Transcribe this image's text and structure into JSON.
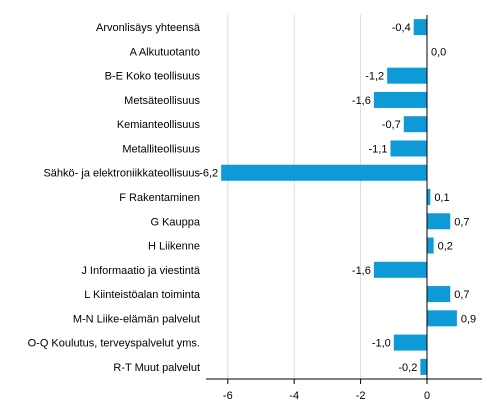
{
  "chart_data": {
    "type": "bar",
    "orientation": "horizontal",
    "categories": [
      "Arvonlisäys yhteensä",
      "A Alkutuotanto",
      "B-E Koko teollisuus",
      "Metsäteollisuus",
      "Kemianteollisuus",
      "Metalliteollisuus",
      "Sähkö- ja elektroniikkateollisuus",
      "F Rakentaminen",
      "G Kauppa",
      "H Liikenne",
      "J Informaatio ja viestintä",
      "L Kiinteistöalan toiminta",
      "M-N Liike-elämän palvelut",
      "O-Q Koulutus, terveyspalvelut yms.",
      "R-T Muut palvelut"
    ],
    "values": [
      -0.4,
      0.0,
      -1.2,
      -1.6,
      -0.7,
      -1.1,
      -6.2,
      0.1,
      0.7,
      0.2,
      -1.6,
      0.7,
      0.9,
      -1.0,
      -0.2
    ],
    "value_labels": [
      "-0,4",
      "0,0",
      "-1,2",
      "-1,6",
      "-0,7",
      "-1,1",
      "-6,2",
      "0,1",
      "0,7",
      "0,2",
      "-1,6",
      "0,7",
      "0,9",
      "-1,0",
      "-0,2"
    ],
    "xticks": [
      -6,
      -4,
      -2,
      0
    ],
    "xtick_labels": [
      "-6",
      "-4",
      "-2",
      "0"
    ],
    "xlim": [
      -7,
      1.6
    ],
    "grid": true,
    "bar_color": "#0e9ad7",
    "grid_color": "#d9d9d9",
    "axis_color": "#000000",
    "title": "",
    "xlabel": "",
    "ylabel": ""
  }
}
